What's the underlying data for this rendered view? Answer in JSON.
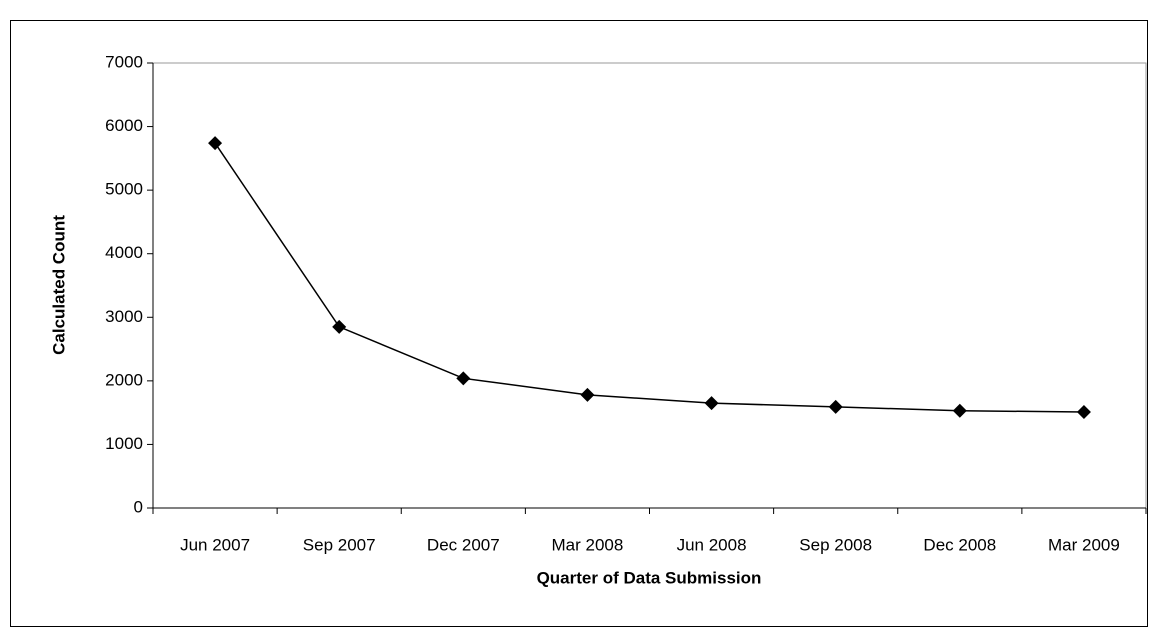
{
  "chart_data": {
    "type": "line",
    "x_label": "Quarter of Data Submission",
    "y_label": "Calculated Count",
    "categories": [
      "Jun 2007",
      "Sep 2007",
      "Dec 2007",
      "Mar 2008",
      "Jun 2008",
      "Sep 2008",
      "Dec 2008",
      "Mar 2009"
    ],
    "series": [
      {
        "name": "Calculated Count",
        "color": "#000000",
        "values": [
          5740,
          2850,
          2040,
          1780,
          1650,
          1590,
          1530,
          1510
        ]
      }
    ],
    "ylim": [
      0,
      7000
    ],
    "yticks": [
      0,
      1000,
      2000,
      3000,
      4000,
      5000,
      6000,
      7000
    ],
    "grid": false
  }
}
